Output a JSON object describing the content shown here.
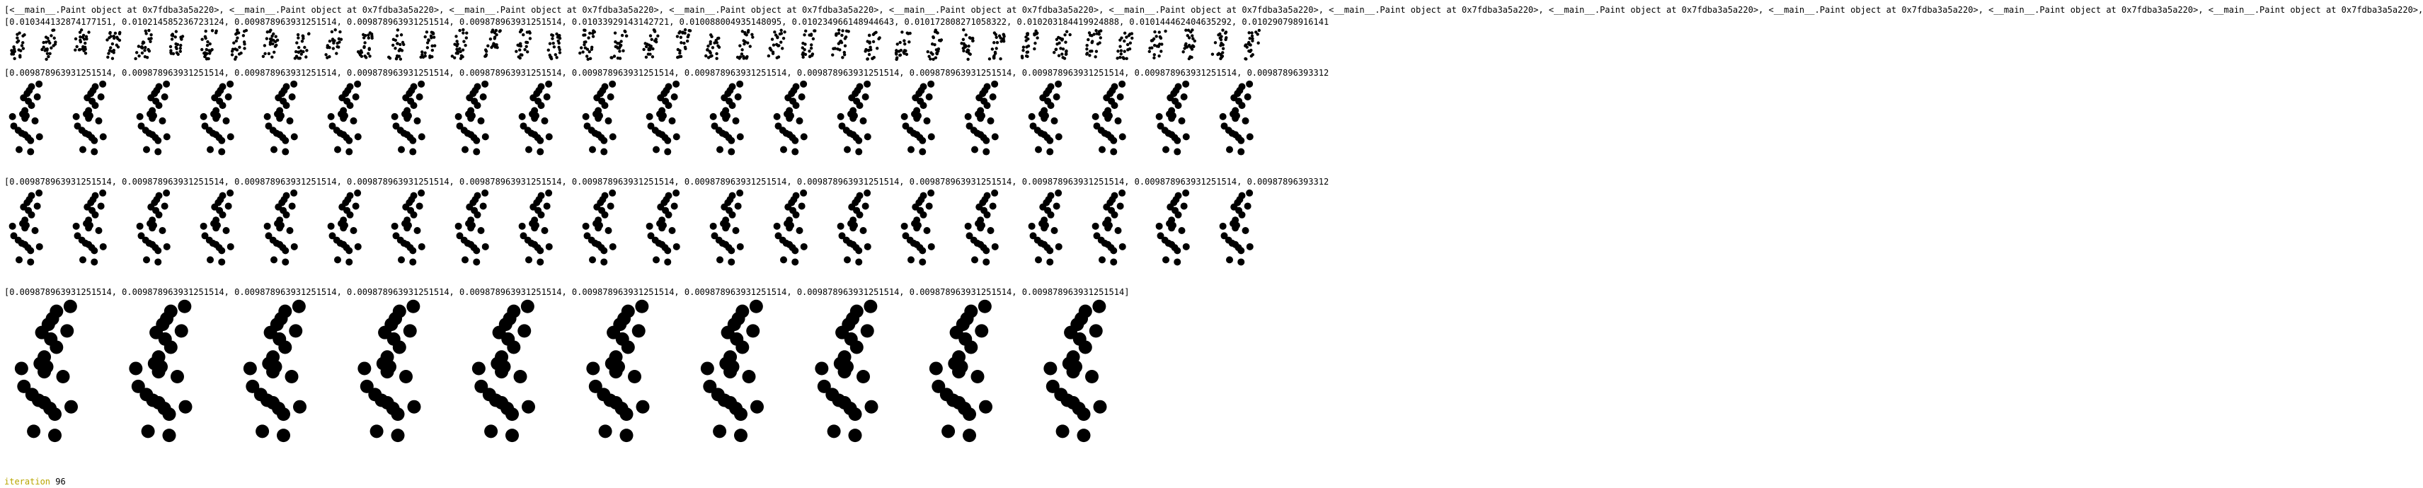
{
  "output": {
    "paint_list": "[<__main__.Paint object at 0x7fdba3a5a220>, <__main__.Paint object at 0x7fdba3a5a220>, <__main__.Paint object at 0x7fdba3a5a220>, <__main__.Paint object at 0x7fdba3a5a220>, <__main__.Paint object at 0x7fdba3a5a220>, <__main__.Paint object at 0x7fdba3a5a220>, <__main__.Paint object at 0x7fdba3a5a220>, <__main__.Paint object at 0x7fdba3a5a220>, <__main__.Paint object at 0x7fdba3a5a220>, <__main__.Paint object at 0x7fdba3a5a220>, <__main__.Paint object at 0x7fdba3a5a220>,",
    "scores_1": "[0.010344132874177151, 0.010214585236723124, 0.009878963931251514, 0.009878963931251514, 0.009878963931251514, 0.01033929143142721, 0.010088004935148095, 0.010234966148944643, 0.010172808271058322, 0.010203184419924888, 0.010144462404635292, 0.010290798916141",
    "scores_2": "[0.009878963931251514, 0.009878963931251514, 0.009878963931251514, 0.009878963931251514, 0.009878963931251514, 0.009878963931251514, 0.009878963931251514, 0.009878963931251514, 0.009878963931251514, 0.009878963931251514, 0.009878963931251514, 0.00987896393312",
    "scores_3": "[0.009878963931251514, 0.009878963931251514, 0.009878963931251514, 0.009878963931251514, 0.009878963931251514, 0.009878963931251514, 0.009878963931251514, 0.009878963931251514, 0.009878963931251514, 0.009878963931251514, 0.009878963931251514, 0.00987896393312",
    "scores_4": "[0.009878963931251514, 0.009878963931251514, 0.009878963931251514, 0.009878963931251514, 0.009878963931251514, 0.009878963931251514, 0.009878963931251514, 0.009878963931251514, 0.009878963931251514, 0.009878963931251514]",
    "iteration_label": "iteration",
    "iteration_value": "96"
  }
}
